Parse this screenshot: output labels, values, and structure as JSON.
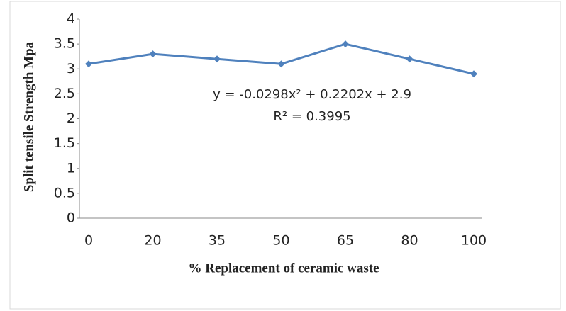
{
  "chart_data": {
    "type": "line",
    "x_label": "% Replacement of ceramic waste",
    "y_label": "Split tensile Strength Mpa",
    "categories": [
      "0",
      "20",
      "35",
      "50",
      "65",
      "80",
      "100"
    ],
    "series": [
      {
        "name": "Split tensile strength",
        "color": "#4f81bd",
        "values": [
          3.1,
          3.3,
          3.2,
          3.1,
          3.5,
          3.2,
          2.9
        ]
      }
    ],
    "ylim": [
      0,
      4
    ],
    "yticks": [
      0,
      0.5,
      1,
      1.5,
      2,
      2.5,
      3,
      3.5,
      4
    ],
    "annotations": [
      "y = -0.0298x² + 0.2202x + 2.9",
      "R² = 0.3995"
    ],
    "legend": false
  }
}
